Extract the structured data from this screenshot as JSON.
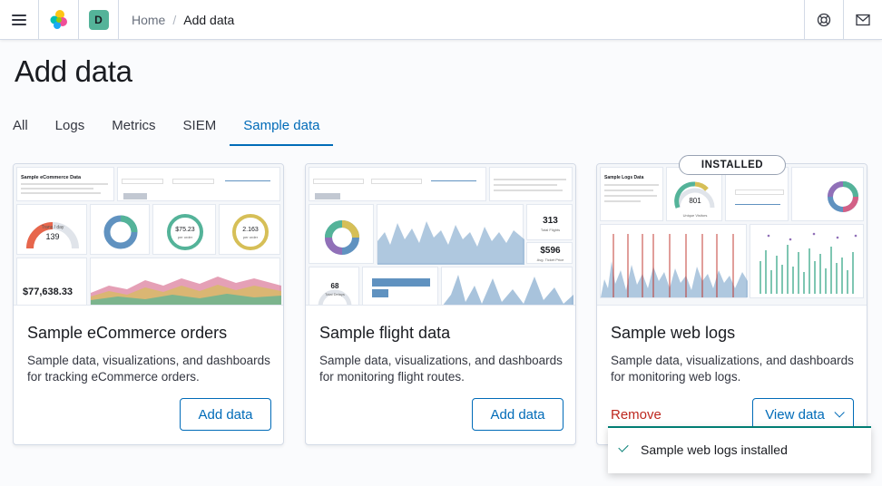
{
  "header": {
    "space_initial": "D",
    "breadcrumbs": {
      "home": "Home",
      "separator": "/",
      "current": "Add data"
    }
  },
  "page": {
    "title": "Add data"
  },
  "tabs": [
    {
      "label": "All"
    },
    {
      "label": "Logs"
    },
    {
      "label": "Metrics"
    },
    {
      "label": "SIEM"
    },
    {
      "label": "Sample data",
      "active": true
    }
  ],
  "cards": {
    "ecommerce": {
      "title": "Sample eCommerce orders",
      "description": "Sample data, visualizations, and dashboards for tracking eCommerce orders.",
      "button_label": "Add data",
      "preview": {
        "heading": "Sample eCommerce Data",
        "gauge_value": "139",
        "gauge_label": "Trans / day",
        "avg_spend": "$75.23",
        "avg_spend_label": "per order",
        "avg_sold": "2.163",
        "avg_sold_label": "per order",
        "total_revenue": "$77,638.33"
      }
    },
    "flights": {
      "title": "Sample flight data",
      "description": "Sample data, visualizations, and dashboards for monitoring flight routes.",
      "button_label": "Add data",
      "preview": {
        "total_flights": "313",
        "total_flights_label": "Total Flights",
        "avg_price": "$596",
        "avg_price_label": "Avg. Ticket Price",
        "delays": "68",
        "delays_label": "Total Delays"
      }
    },
    "weblogs": {
      "title": "Sample web logs",
      "description": "Sample data, visualizations, and dashboards for monitoring web logs.",
      "installed_badge": "INSTALLED",
      "remove_label": "Remove",
      "view_label": "View data",
      "preview": {
        "heading": "Sample Logs Data",
        "visitors": "801",
        "visitors_label": "Unique Visitors"
      }
    }
  },
  "toast": {
    "message": "Sample web logs installed"
  },
  "colors": {
    "primary": "#006bb8",
    "danger": "#bd271e",
    "success": "#017d73",
    "viz_teal": "#54b399",
    "viz_blue": "#6092c0",
    "viz_orange": "#e7664c",
    "viz_pink": "#d36086"
  }
}
